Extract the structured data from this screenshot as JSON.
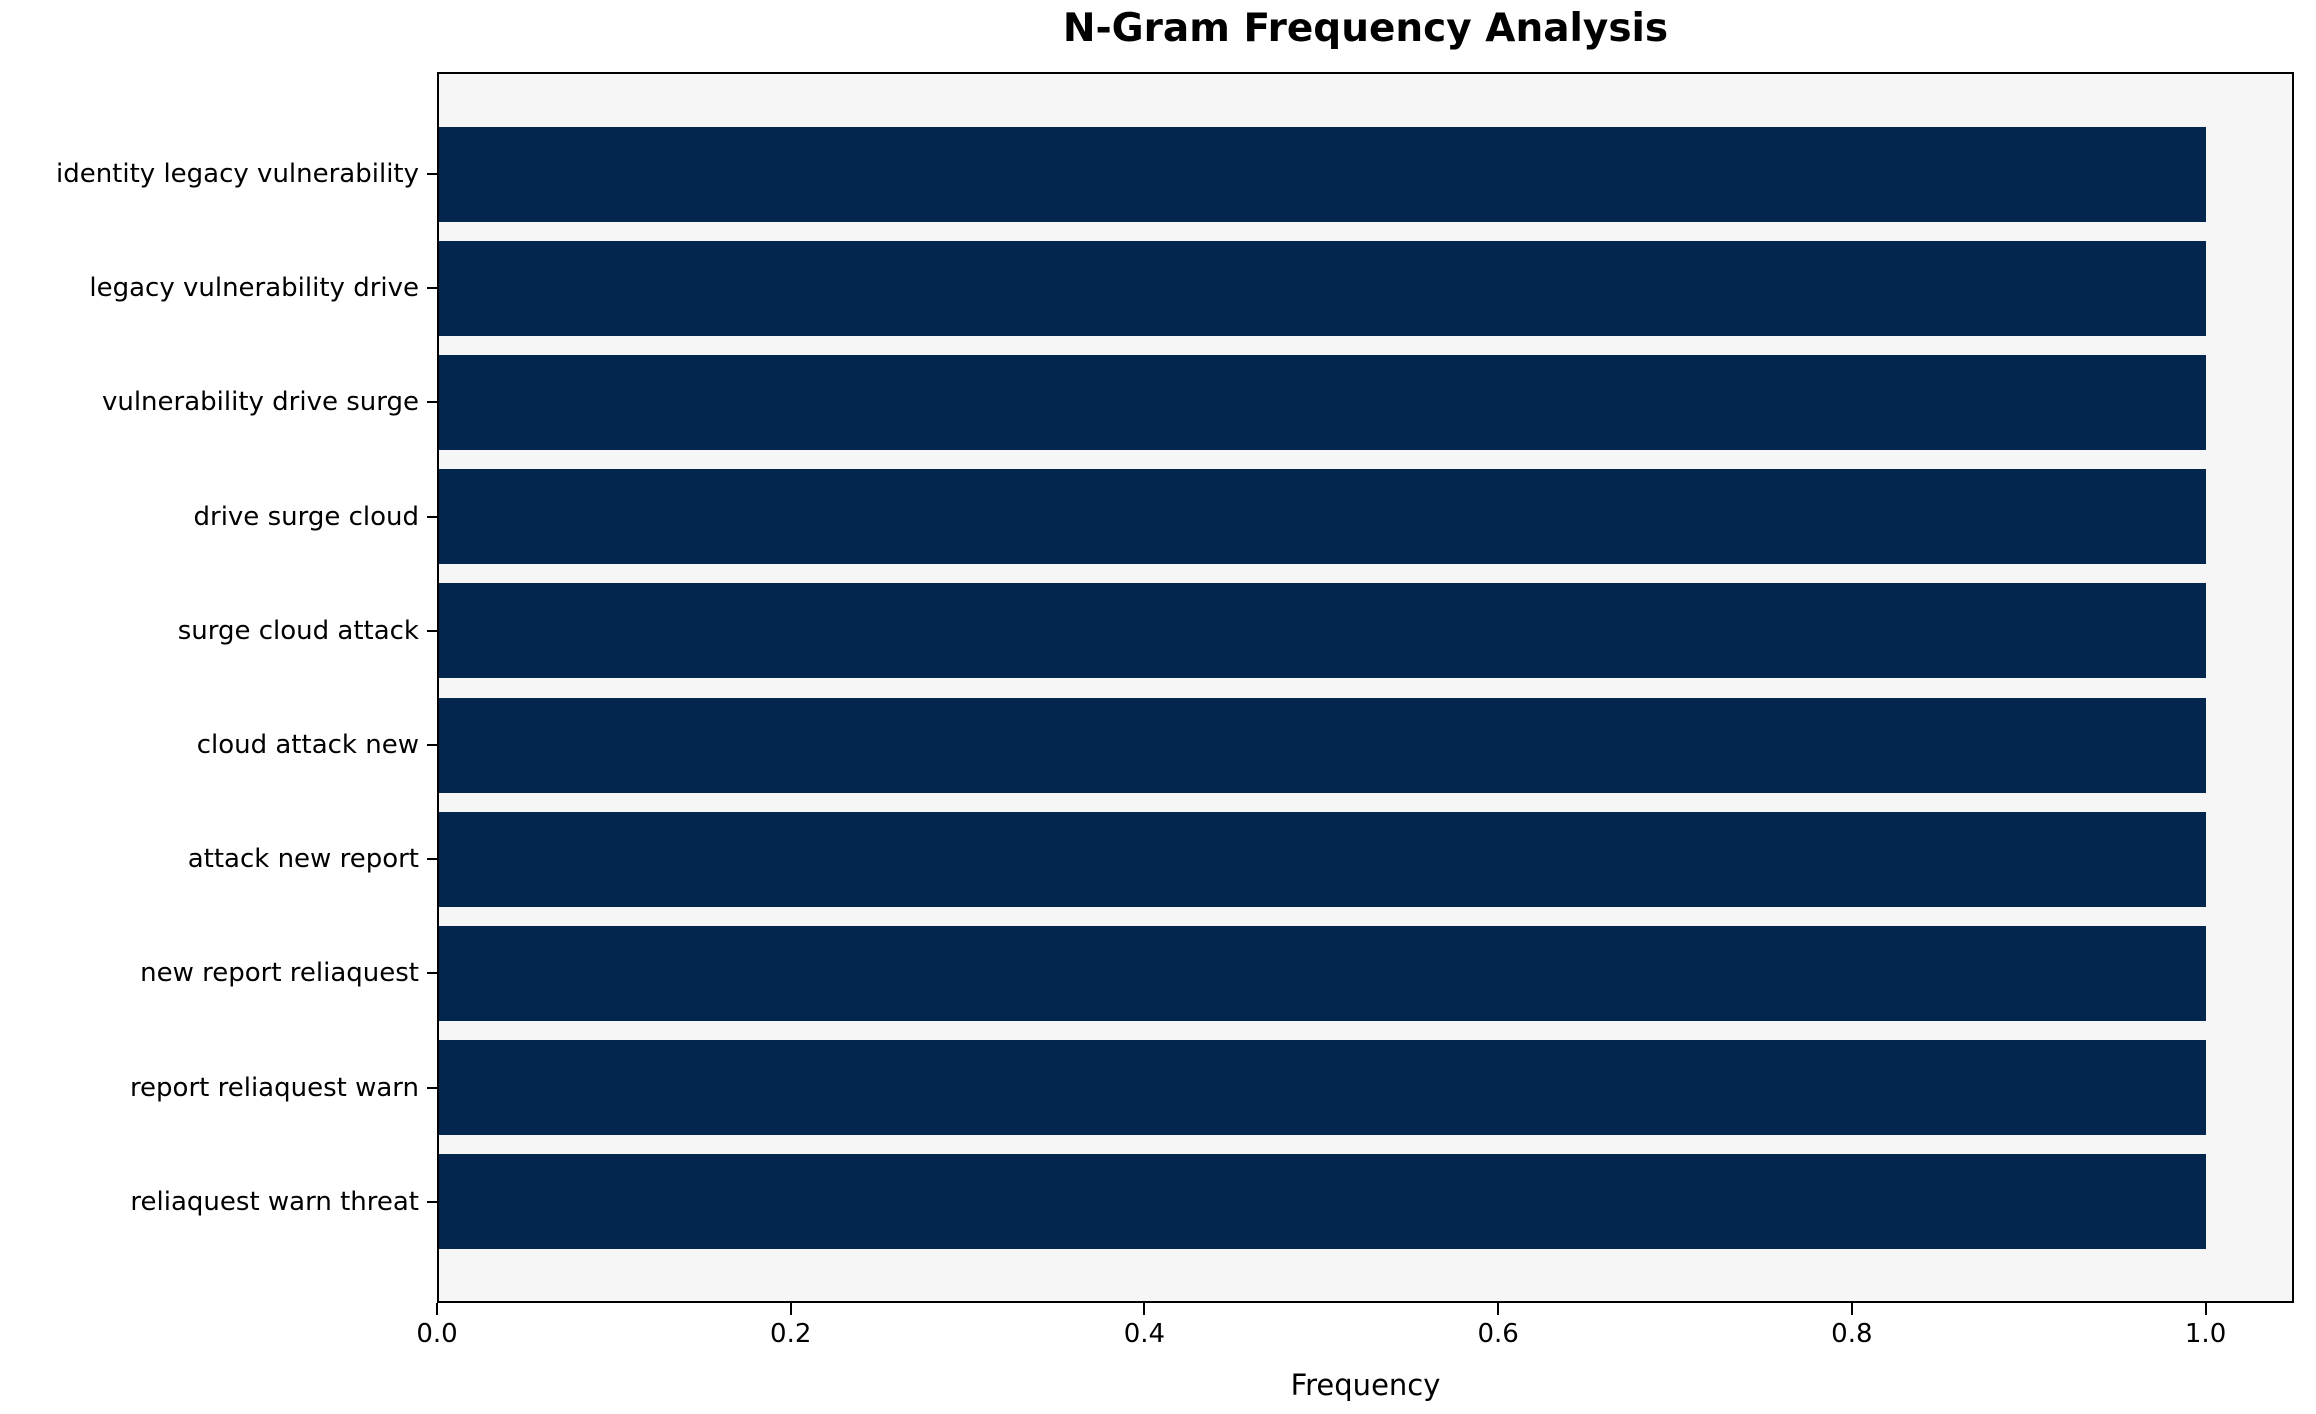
{
  "chart_data": {
    "type": "bar",
    "orientation": "horizontal",
    "title": "N-Gram Frequency Analysis",
    "xlabel": "Frequency",
    "ylabel": "",
    "categories": [
      "identity legacy vulnerability",
      "legacy vulnerability drive",
      "vulnerability drive surge",
      "drive surge cloud",
      "surge cloud attack",
      "cloud attack new",
      "attack new report",
      "new report reliaquest",
      "report reliaquest warn",
      "reliaquest warn threat"
    ],
    "values": [
      1.0,
      1.0,
      1.0,
      1.0,
      1.0,
      1.0,
      1.0,
      1.0,
      1.0,
      1.0
    ],
    "xlim": [
      0,
      1.05
    ],
    "xticks": [
      0.0,
      0.2,
      0.4,
      0.6,
      0.8,
      1.0
    ],
    "xtick_labels": [
      "0.0",
      "0.2",
      "0.4",
      "0.6",
      "0.8",
      "1.0"
    ],
    "grid": false,
    "legend": null,
    "colors": {
      "bar": "#02264d",
      "plot_background": "#f6f6f6",
      "figure_background": "#ffffff",
      "spine": "#000000",
      "text": "#000000"
    }
  }
}
